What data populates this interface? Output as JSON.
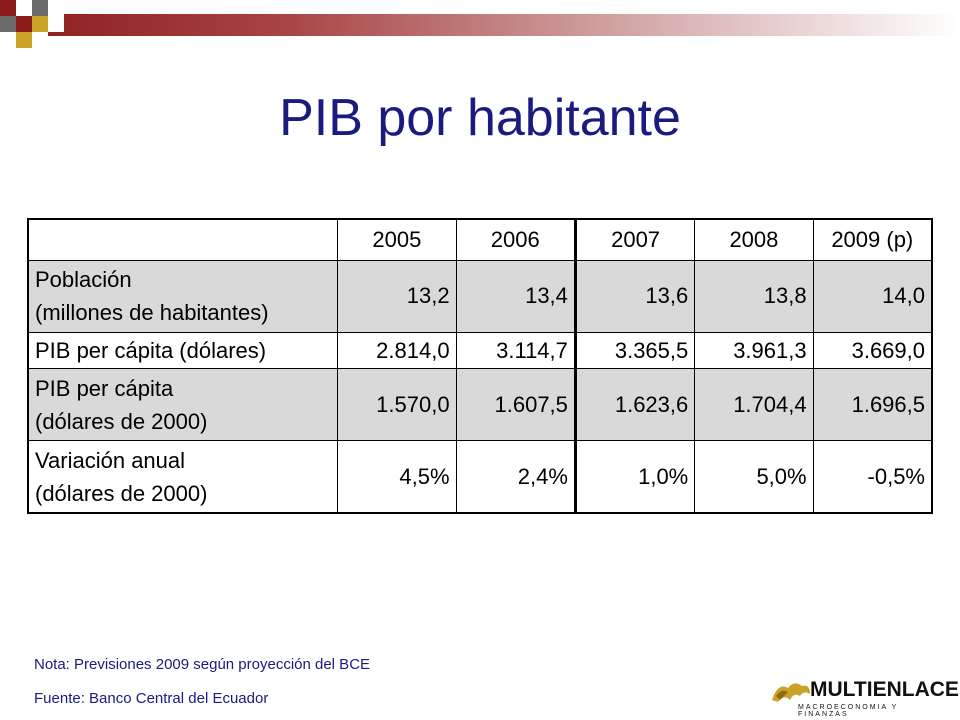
{
  "slide": {
    "title": "PIB por habitante"
  },
  "table": {
    "years": [
      "2005",
      "2006",
      "2007",
      "2008",
      "2009 (p)"
    ],
    "rows": [
      {
        "label_line1": "Población",
        "label_line2": "(millones de habitantes)",
        "values": [
          "13,2",
          "13,4",
          "13,6",
          "13,8",
          "14,0"
        ]
      },
      {
        "label_line1": "PIB per cápita (dólares)",
        "label_line2": "",
        "values": [
          "2.814,0",
          "3.114,7",
          "3.365,5",
          "3.961,3",
          "3.669,0"
        ]
      },
      {
        "label_line1": "PIB per cápita",
        "label_line2": "(dólares de 2000)",
        "values": [
          "1.570,0",
          "1.607,5",
          "1.623,6",
          "1.704,4",
          "1.696,5"
        ]
      },
      {
        "label_line1": "Variación anual",
        "label_line2": "(dólares de 2000)",
        "values": [
          "4,5%",
          "2,4%",
          "1,0%",
          "5,0%",
          "-0,5%"
        ]
      }
    ]
  },
  "footer": {
    "note": "Nota: Previsiones 2009 según proyección del BCE",
    "source": "Fuente: Banco Central del Ecuador"
  },
  "logo": {
    "name": "MULTIENLACE",
    "tagline": "MACROECONOMIA Y FINANZAS"
  },
  "colors": {
    "title": "#1a1a80",
    "shade": "#d9d9d9",
    "band": "#8b1a1a",
    "logo_gold": "#c9a227"
  }
}
